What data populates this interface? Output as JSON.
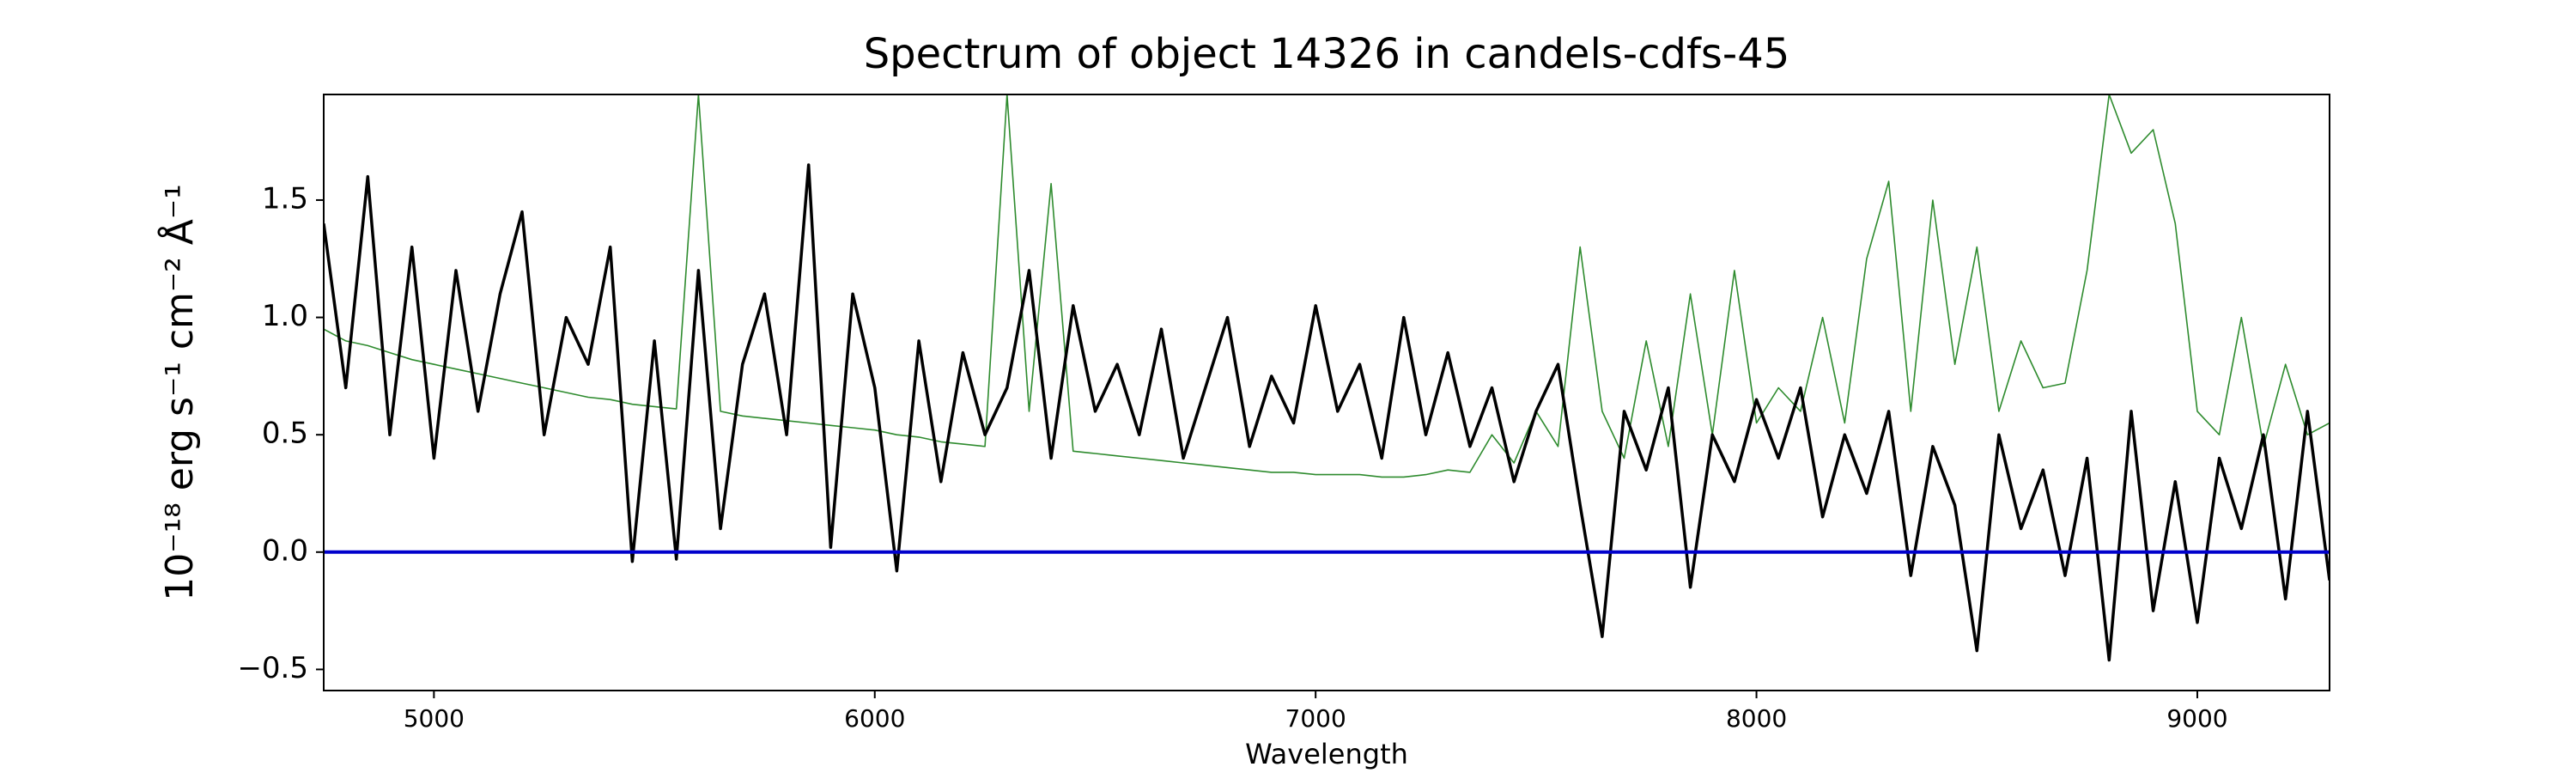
{
  "chart_data": {
    "type": "line",
    "title": "Spectrum of object 14326 in candels-cdfs-45",
    "xlabel": "Wavelength",
    "ylabel": "10⁻¹⁸ erg s⁻¹ cm⁻² Å⁻¹",
    "xlim": [
      4750,
      9300
    ],
    "ylim": [
      -0.59,
      1.95
    ],
    "xticks": [
      5000,
      6000,
      7000,
      8000,
      9000
    ],
    "yticks": [
      {
        "value": -0.5,
        "label": "−0.5"
      },
      {
        "value": 0,
        "label": "0.0"
      },
      0.5,
      {
        "value": 1,
        "label": "1.0"
      },
      1.5
    ],
    "reference_line": {
      "value": 0,
      "color": "#0000cc"
    },
    "x": [
      4750,
      4800,
      4850,
      4900,
      4950,
      5000,
      5050,
      5100,
      5150,
      5200,
      5250,
      5300,
      5350,
      5400,
      5450,
      5500,
      5550,
      5600,
      5650,
      5700,
      5750,
      5800,
      5850,
      5900,
      5950,
      6000,
      6050,
      6100,
      6150,
      6200,
      6250,
      6300,
      6350,
      6400,
      6450,
      6500,
      6550,
      6600,
      6650,
      6700,
      6750,
      6800,
      6850,
      6900,
      6950,
      7000,
      7050,
      7100,
      7150,
      7200,
      7250,
      7300,
      7350,
      7400,
      7450,
      7500,
      7550,
      7600,
      7650,
      7700,
      7750,
      7800,
      7850,
      7900,
      7950,
      8000,
      8050,
      8100,
      8150,
      8200,
      8250,
      8300,
      8350,
      8400,
      8450,
      8500,
      8550,
      8600,
      8650,
      8700,
      8750,
      8800,
      8850,
      8900,
      8950,
      9000,
      9050,
      9100,
      9150,
      9200,
      9250,
      9300
    ],
    "series": [
      {
        "color": "#2e8b2e",
        "width": 1.6,
        "values": [
          0.95,
          0.9,
          0.88,
          0.85,
          0.82,
          0.8,
          0.78,
          0.76,
          0.74,
          0.72,
          0.7,
          0.68,
          0.66,
          0.65,
          0.63,
          0.62,
          0.61,
          1.95,
          0.6,
          0.58,
          0.57,
          0.56,
          0.55,
          0.54,
          0.53,
          0.52,
          0.5,
          0.49,
          0.47,
          0.46,
          0.45,
          1.95,
          0.6,
          1.57,
          0.43,
          0.42,
          0.41,
          0.4,
          0.39,
          0.38,
          0.37,
          0.36,
          0.35,
          0.34,
          0.34,
          0.33,
          0.33,
          0.33,
          0.32,
          0.32,
          0.33,
          0.35,
          0.34,
          0.5,
          0.38,
          0.6,
          0.45,
          1.3,
          0.6,
          0.4,
          0.9,
          0.45,
          1.1,
          0.5,
          1.2,
          0.55,
          0.7,
          0.6,
          1.0,
          0.55,
          1.25,
          1.58,
          0.6,
          1.5,
          0.8,
          1.3,
          0.6,
          0.9,
          0.7,
          0.72,
          1.2,
          1.95,
          1.7,
          1.8,
          1.4,
          0.6,
          0.5,
          1.0,
          0.45,
          0.8,
          0.5,
          0.55
        ]
      },
      {
        "color": "#000000",
        "width": 3.5,
        "values": [
          1.4,
          0.7,
          1.6,
          0.5,
          1.3,
          0.4,
          1.2,
          0.6,
          1.1,
          1.45,
          0.5,
          1.0,
          0.8,
          1.3,
          -0.04,
          0.9,
          -0.03,
          1.2,
          0.1,
          0.8,
          1.1,
          0.5,
          1.65,
          0.02,
          1.1,
          0.7,
          -0.08,
          0.9,
          0.3,
          0.85,
          0.5,
          0.7,
          1.2,
          0.4,
          1.05,
          0.6,
          0.8,
          0.5,
          0.95,
          0.4,
          0.7,
          1.0,
          0.45,
          0.75,
          0.55,
          1.05,
          0.6,
          0.8,
          0.4,
          1.0,
          0.5,
          0.85,
          0.45,
          0.7,
          0.3,
          0.6,
          0.8,
          0.2,
          -0.36,
          0.6,
          0.35,
          0.7,
          -0.15,
          0.5,
          0.3,
          0.65,
          0.4,
          0.7,
          0.15,
          0.5,
          0.25,
          0.6,
          -0.1,
          0.45,
          0.2,
          -0.42,
          0.5,
          0.1,
          0.35,
          -0.1,
          0.4,
          -0.46,
          0.6,
          -0.25,
          0.3,
          -0.3,
          0.4,
          0.1,
          0.5,
          -0.2,
          0.6,
          -0.12
        ]
      }
    ]
  }
}
